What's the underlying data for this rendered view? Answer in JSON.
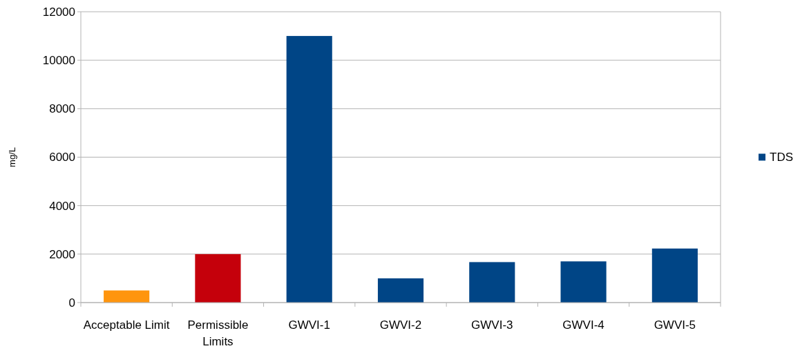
{
  "chart_data": {
    "type": "bar",
    "ylabel": "mg/L",
    "categories": [
      "Acceptable Limit",
      "Permissible Limits",
      "GWVI-1",
      "GWVI-2",
      "GWVI-3",
      "GWVI-4",
      "GWVI-5"
    ],
    "series": [
      {
        "name": "TDS",
        "color": "#004586",
        "colors": [
          "#ff950e",
          "#c5000b",
          "#004586",
          "#004586",
          "#004586",
          "#004586",
          "#004586"
        ],
        "values": [
          500,
          2000,
          11000,
          1000,
          1670,
          1700,
          2230
        ]
      }
    ],
    "ylim": [
      0,
      12000
    ],
    "yticks": [
      0,
      2000,
      4000,
      6000,
      8000,
      10000,
      12000
    ],
    "grid": "y",
    "legend": "right"
  }
}
